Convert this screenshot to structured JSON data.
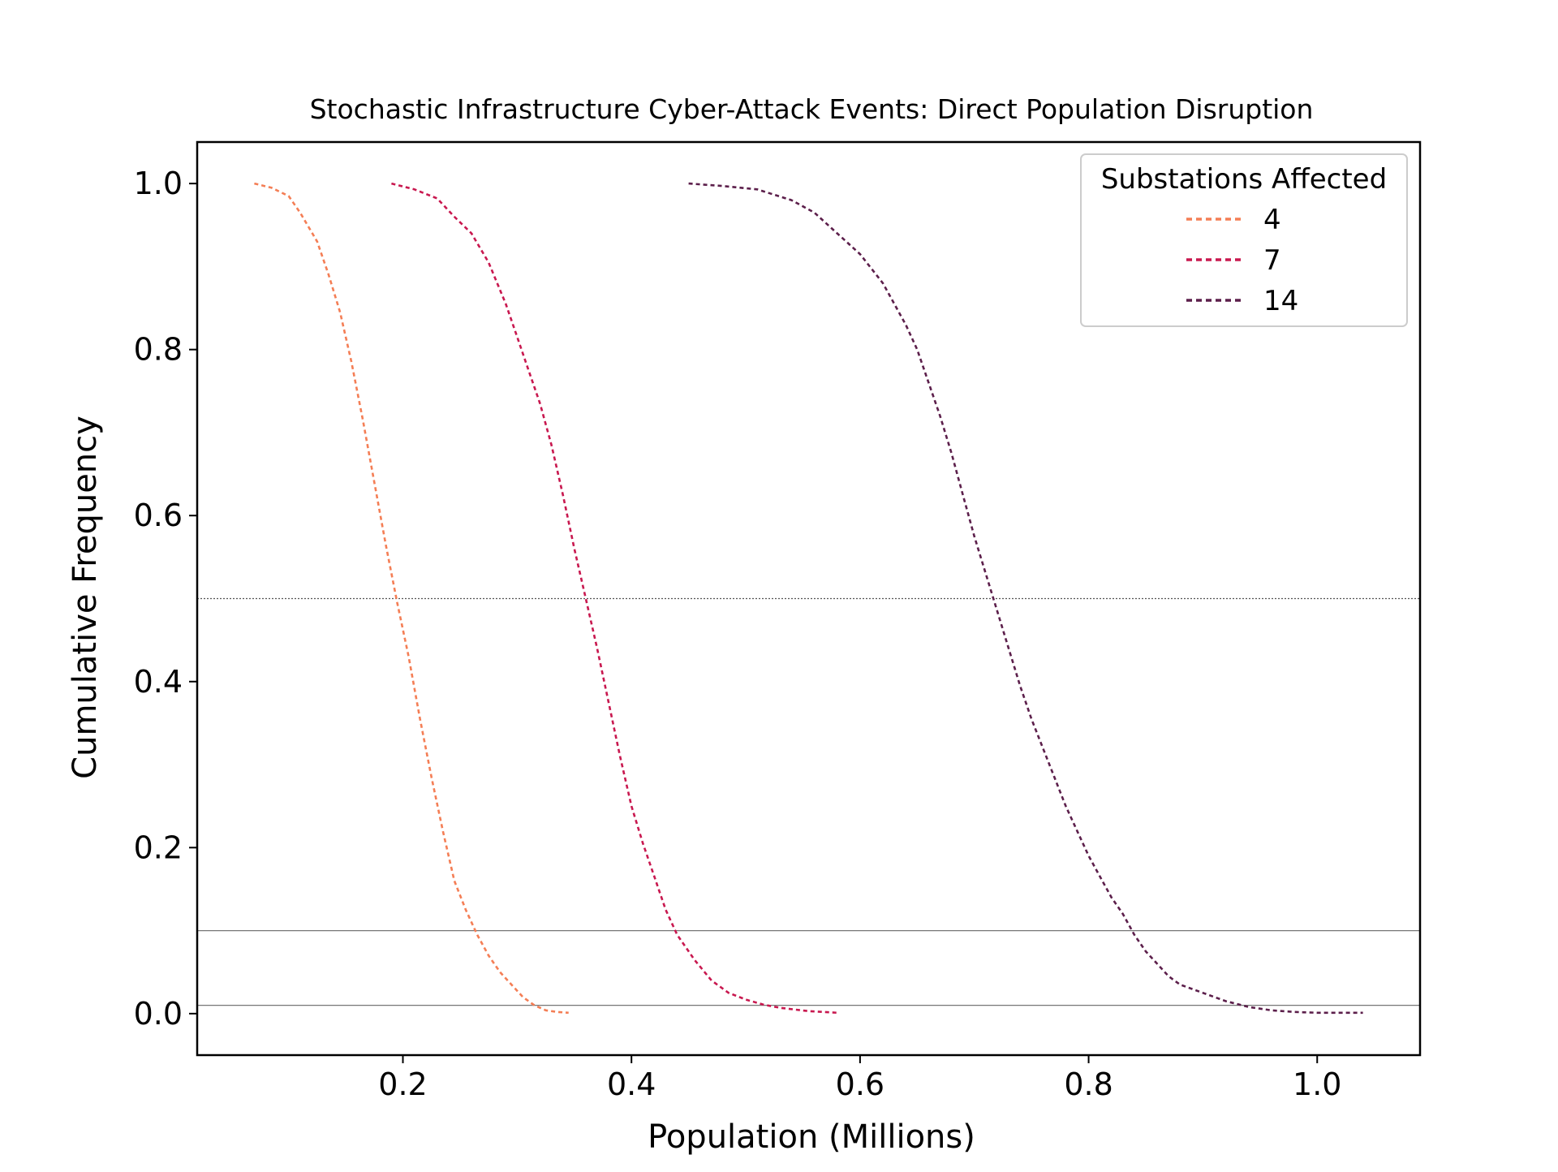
{
  "chart_data": {
    "type": "line",
    "title": "Stochastic Infrastructure Cyber-Attack Events: Direct Population Disruption",
    "xlabel": "Population (Millions)",
    "ylabel": "Cumulative Frequency",
    "xlim": [
      0.02,
      1.09
    ],
    "ylim": [
      -0.05,
      1.05
    ],
    "xticks": [
      0.2,
      0.4,
      0.6,
      0.8,
      1.0
    ],
    "xtick_labels": [
      "0.2",
      "0.4",
      "0.6",
      "0.8",
      "1.0"
    ],
    "yticks": [
      0.0,
      0.2,
      0.4,
      0.6,
      0.8,
      1.0
    ],
    "ytick_labels": [
      "0.0",
      "0.2",
      "0.4",
      "0.6",
      "0.8",
      "1.0"
    ],
    "grid": false,
    "legend": {
      "title": "Substations Affected",
      "placement": "top-right"
    },
    "reference_lines": [
      {
        "y": 0.5,
        "style": "dotted",
        "color": "#555555"
      },
      {
        "y": 0.1,
        "style": "solid",
        "color": "#777777"
      },
      {
        "y": 0.01,
        "style": "solid",
        "color": "#777777"
      }
    ],
    "series": [
      {
        "name": "4",
        "color": "#f47e55",
        "x": [
          0.07,
          0.085,
          0.1,
          0.11,
          0.125,
          0.135,
          0.145,
          0.155,
          0.165,
          0.175,
          0.185,
          0.195,
          0.205,
          0.215,
          0.225,
          0.235,
          0.245,
          0.255,
          0.265,
          0.275,
          0.285,
          0.295,
          0.305,
          0.315,
          0.325,
          0.335,
          0.345
        ],
        "y": [
          1.0,
          0.995,
          0.985,
          0.965,
          0.93,
          0.89,
          0.845,
          0.785,
          0.715,
          0.64,
          0.565,
          0.495,
          0.43,
          0.355,
          0.285,
          0.22,
          0.16,
          0.125,
          0.095,
          0.07,
          0.05,
          0.035,
          0.02,
          0.01,
          0.004,
          0.002,
          0.001
        ]
      },
      {
        "name": "7",
        "color": "#c8184f",
        "x": [
          0.19,
          0.21,
          0.23,
          0.245,
          0.26,
          0.275,
          0.29,
          0.3,
          0.31,
          0.32,
          0.33,
          0.34,
          0.35,
          0.36,
          0.37,
          0.38,
          0.39,
          0.4,
          0.41,
          0.42,
          0.43,
          0.44,
          0.455,
          0.47,
          0.485,
          0.5,
          0.515,
          0.53,
          0.555,
          0.58
        ],
        "y": [
          1.0,
          0.993,
          0.982,
          0.96,
          0.94,
          0.905,
          0.855,
          0.815,
          0.775,
          0.735,
          0.685,
          0.625,
          0.56,
          0.5,
          0.44,
          0.375,
          0.31,
          0.25,
          0.205,
          0.165,
          0.125,
          0.095,
          0.065,
          0.04,
          0.025,
          0.017,
          0.011,
          0.007,
          0.003,
          0.001
        ]
      },
      {
        "name": "14",
        "color": "#5c1f4b",
        "x": [
          0.45,
          0.48,
          0.51,
          0.54,
          0.56,
          0.58,
          0.6,
          0.62,
          0.64,
          0.65,
          0.66,
          0.67,
          0.68,
          0.69,
          0.7,
          0.71,
          0.72,
          0.73,
          0.74,
          0.75,
          0.76,
          0.77,
          0.78,
          0.79,
          0.8,
          0.81,
          0.82,
          0.83,
          0.84,
          0.85,
          0.86,
          0.87,
          0.88,
          0.9,
          0.92,
          0.94,
          0.96,
          0.98,
          1.0,
          1.04
        ],
        "y": [
          1.0,
          0.997,
          0.993,
          0.98,
          0.965,
          0.94,
          0.915,
          0.88,
          0.83,
          0.8,
          0.76,
          0.72,
          0.675,
          0.625,
          0.575,
          0.53,
          0.485,
          0.44,
          0.395,
          0.355,
          0.32,
          0.285,
          0.25,
          0.22,
          0.19,
          0.165,
          0.14,
          0.12,
          0.095,
          0.075,
          0.06,
          0.045,
          0.035,
          0.025,
          0.015,
          0.008,
          0.004,
          0.002,
          0.001,
          0.001
        ]
      }
    ]
  }
}
